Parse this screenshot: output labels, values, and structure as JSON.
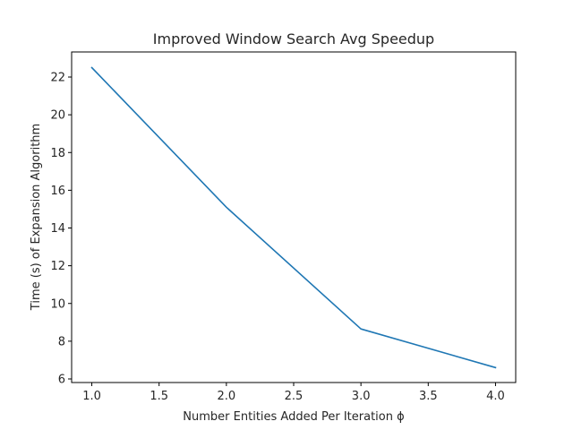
{
  "chart_data": {
    "type": "line",
    "title": "Improved Window Search Avg Speedup",
    "xlabel": "Number Entities Added Per Iteration ϕ",
    "ylabel": "Time (s) of Expansion Algorithm",
    "xlim": [
      0.85,
      4.15
    ],
    "ylim": [
      5.81,
      23.33
    ],
    "xticks": [
      1.0,
      1.5,
      2.0,
      2.5,
      3.0,
      3.5,
      4.0
    ],
    "xtick_labels": [
      "1.0",
      "1.5",
      "2.0",
      "2.5",
      "3.0",
      "3.5",
      "4.0"
    ],
    "yticks": [
      6,
      8,
      10,
      12,
      14,
      16,
      18,
      20,
      22
    ],
    "ytick_labels": [
      "6",
      "8",
      "10",
      "12",
      "14",
      "16",
      "18",
      "20",
      "22"
    ],
    "grid": false,
    "series": [
      {
        "color": "#1f77b4",
        "x": [
          1.0,
          2.0,
          3.0,
          4.0
        ],
        "y": [
          22.5,
          15.1,
          8.65,
          6.6
        ]
      }
    ]
  }
}
